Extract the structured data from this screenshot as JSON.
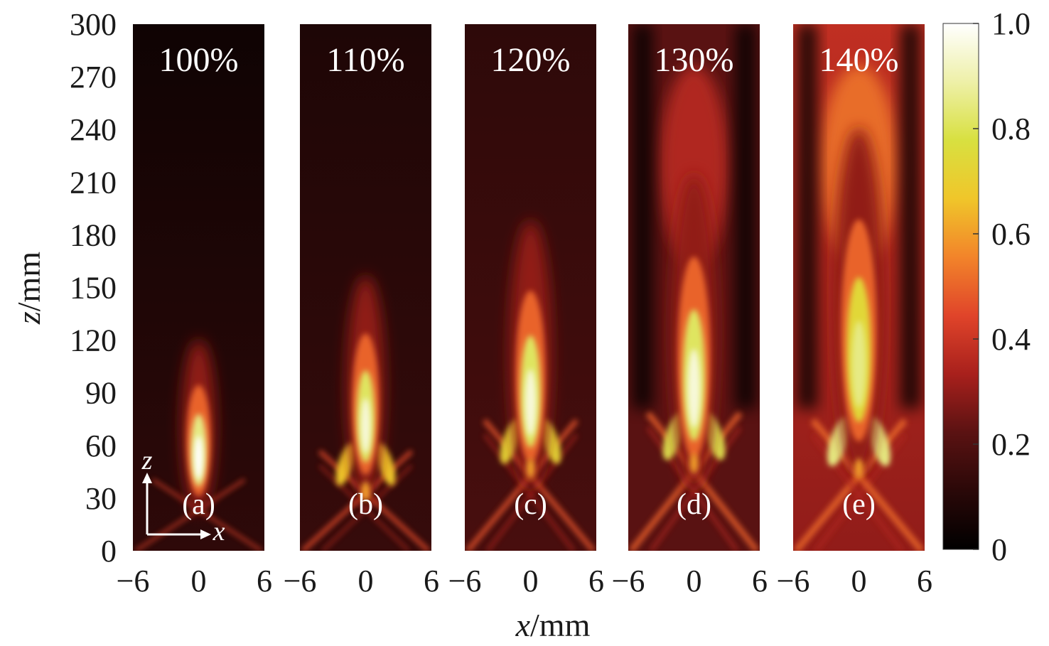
{
  "chart_data": {
    "type": "heatmap",
    "title": "",
    "xlabel": {
      "var": "x",
      "unit": "/mm"
    },
    "ylabel": {
      "var": "z",
      "unit": "/mm"
    },
    "xlim": [
      -6,
      6
    ],
    "ylim": [
      0,
      300
    ],
    "x_ticks": [
      "−6",
      "0",
      "6"
    ],
    "y_ticks": [
      "0",
      "30",
      "60",
      "90",
      "120",
      "150",
      "180",
      "210",
      "240",
      "270",
      "300"
    ],
    "colorbar": {
      "range": [
        0,
        1.0
      ],
      "ticks": [
        "0",
        "0.2",
        "0.4",
        "0.6",
        "0.8",
        "1.0"
      ],
      "colormap": [
        "#000000",
        "#2a0808",
        "#5a1212",
        "#a8201c",
        "#e0442a",
        "#f2842a",
        "#f0c62a",
        "#d8e040",
        "#eef0a8",
        "#ffffff"
      ]
    },
    "panels": [
      {
        "label": "(a)",
        "title": "100%",
        "focus_z": 60,
        "length": 55,
        "peak": 1.0,
        "tail_end_z": 125,
        "cross_z": 30,
        "side_lobes": 0.0,
        "bg_top": 0.04,
        "bg_bottom": 0.12
      },
      {
        "label": "(b)",
        "title": "110%",
        "focus_z": 80,
        "length": 70,
        "peak": 0.95,
        "tail_end_z": 160,
        "cross_z": 42,
        "side_lobes": 0.35,
        "bg_top": 0.08,
        "bg_bottom": 0.14
      },
      {
        "label": "(c)",
        "title": "120%",
        "focus_z": 95,
        "length": 85,
        "peak": 0.95,
        "tail_end_z": 230,
        "cross_z": 55,
        "side_lobes": 0.5,
        "bg_top": 0.12,
        "bg_bottom": 0.18
      },
      {
        "label": "(d)",
        "title": "130%",
        "focus_z": 105,
        "length": 100,
        "peak": 0.95,
        "tail_end_z": 300,
        "cross_z": 58,
        "side_lobes": 0.7,
        "bg_top": 0.22,
        "bg_bottom": 0.22
      },
      {
        "label": "(e)",
        "title": "140%",
        "focus_z": 120,
        "length": 110,
        "peak": 0.85,
        "tail_end_z": 300,
        "cross_z": 55,
        "side_lobes": 0.85,
        "bg_top": 0.38,
        "bg_bottom": 0.3
      }
    ],
    "inset_axes": {
      "vertical": "z",
      "horizontal": "x"
    }
  }
}
